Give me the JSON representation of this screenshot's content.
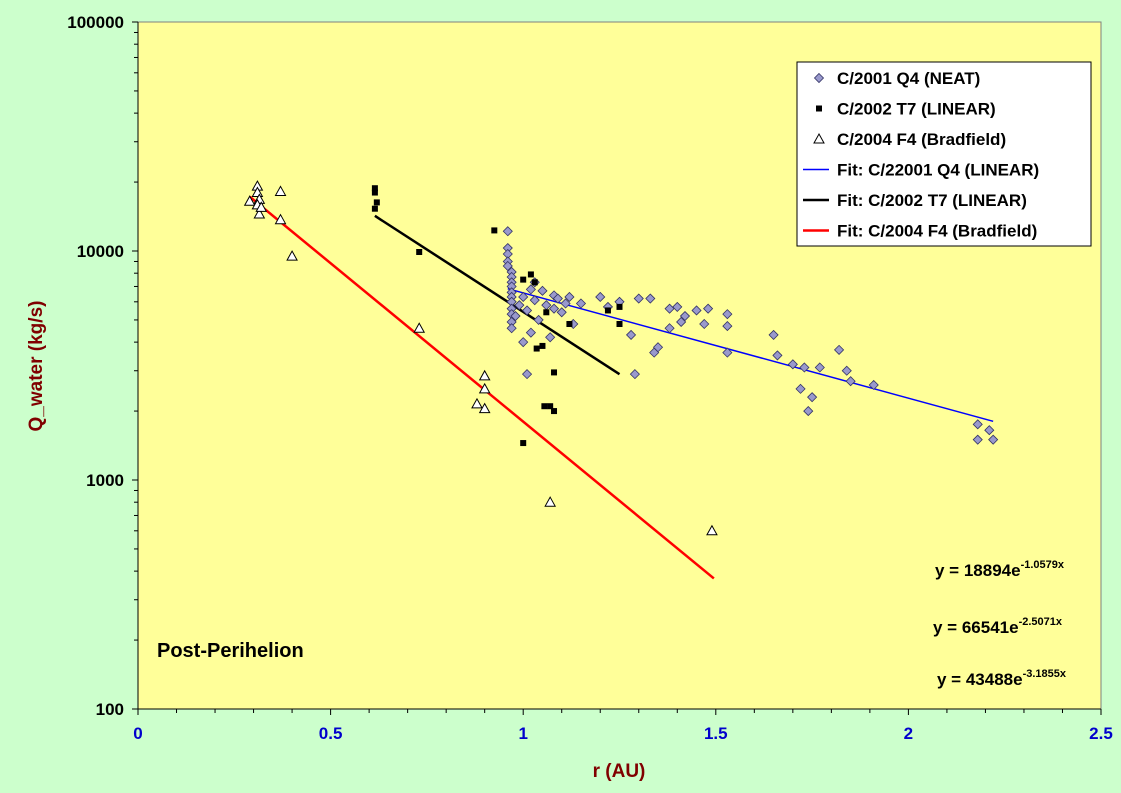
{
  "chart_data": {
    "type": "scatter",
    "title": "",
    "xlabel": "r (AU)",
    "ylabel": "Q_water (kg/s)",
    "xlim": [
      0,
      2.5
    ],
    "ylim": [
      100,
      100000
    ],
    "y_scale": "log",
    "grid": false,
    "legend_position": "top-right",
    "x_ticks": [
      "0",
      "0.5",
      "1",
      "1.5",
      "2",
      "2.5"
    ],
    "y_ticks": [
      "100",
      "1000",
      "10000",
      "100000"
    ],
    "colors": {
      "page_background": "#ccffcc",
      "plot_background": "#ffff99",
      "neat_marker": "#9999cc",
      "linear_marker": "#000000",
      "bradfield_marker": "#ffffff",
      "fit_neat": "#0000ff",
      "fit_linear": "#000000",
      "fit_bradfield": "#ff0000",
      "axis_title": "#800000",
      "x_tick_labels": "#0000cc"
    },
    "series": [
      {
        "name": "C/2001 Q4 (NEAT)",
        "kind": "scatter",
        "marker": "diamond",
        "points": [
          [
            0.96,
            12200
          ],
          [
            0.96,
            10300
          ],
          [
            0.96,
            9700
          ],
          [
            0.96,
            9000
          ],
          [
            0.96,
            8600
          ],
          [
            0.97,
            8100
          ],
          [
            0.97,
            7700
          ],
          [
            0.97,
            7300
          ],
          [
            0.97,
            7000
          ],
          [
            0.97,
            6600
          ],
          [
            0.97,
            6300
          ],
          [
            0.97,
            6000
          ],
          [
            0.97,
            5600
          ],
          [
            0.97,
            5300
          ],
          [
            0.97,
            4900
          ],
          [
            0.97,
            4600
          ],
          [
            0.98,
            5200
          ],
          [
            0.99,
            5800
          ],
          [
            1.0,
            6300
          ],
          [
            1.0,
            4000
          ],
          [
            1.01,
            5500
          ],
          [
            1.01,
            2900
          ],
          [
            1.02,
            6800
          ],
          [
            1.02,
            4400
          ],
          [
            1.03,
            7300
          ],
          [
            1.03,
            6100
          ],
          [
            1.04,
            5000
          ],
          [
            1.05,
            6700
          ],
          [
            1.06,
            5800
          ],
          [
            1.07,
            4200
          ],
          [
            1.08,
            5600
          ],
          [
            1.08,
            6400
          ],
          [
            1.09,
            6200
          ],
          [
            1.1,
            5400
          ],
          [
            1.11,
            5900
          ],
          [
            1.12,
            6300
          ],
          [
            1.13,
            4800
          ],
          [
            1.15,
            5900
          ],
          [
            1.2,
            6300
          ],
          [
            1.22,
            5700
          ],
          [
            1.25,
            6000
          ],
          [
            1.28,
            4300
          ],
          [
            1.29,
            2900
          ],
          [
            1.3,
            6200
          ],
          [
            1.33,
            6200
          ],
          [
            1.34,
            3600
          ],
          [
            1.35,
            3800
          ],
          [
            1.38,
            5600
          ],
          [
            1.38,
            4600
          ],
          [
            1.4,
            5700
          ],
          [
            1.41,
            4900
          ],
          [
            1.42,
            5200
          ],
          [
            1.45,
            5500
          ],
          [
            1.47,
            4800
          ],
          [
            1.48,
            5600
          ],
          [
            1.53,
            5300
          ],
          [
            1.53,
            4700
          ],
          [
            1.53,
            3600
          ],
          [
            1.65,
            4300
          ],
          [
            1.66,
            3500
          ],
          [
            1.7,
            3200
          ],
          [
            1.72,
            2500
          ],
          [
            1.73,
            3100
          ],
          [
            1.74,
            2000
          ],
          [
            1.75,
            2300
          ],
          [
            1.77,
            3100
          ],
          [
            1.82,
            3700
          ],
          [
            1.84,
            3000
          ],
          [
            1.85,
            2700
          ],
          [
            1.91,
            2600
          ],
          [
            2.18,
            1750
          ],
          [
            2.18,
            1500
          ],
          [
            2.21,
            1650
          ],
          [
            2.22,
            1500
          ]
        ]
      },
      {
        "name": "C/2002 T7 (LINEAR)",
        "kind": "scatter",
        "marker": "square",
        "points": [
          [
            0.615,
            18800
          ],
          [
            0.615,
            18000
          ],
          [
            0.62,
            16300
          ],
          [
            0.615,
            15300
          ],
          [
            0.73,
            9900
          ],
          [
            0.925,
            12300
          ],
          [
            1.0,
            7500
          ],
          [
            1.02,
            7900
          ],
          [
            1.03,
            7300
          ],
          [
            1.035,
            3750
          ],
          [
            1.05,
            3850
          ],
          [
            1.06,
            5400
          ],
          [
            1.055,
            2100
          ],
          [
            1.07,
            2100
          ],
          [
            1.08,
            2950
          ],
          [
            1.08,
            2000
          ],
          [
            1.0,
            1450
          ],
          [
            1.12,
            4800
          ],
          [
            1.22,
            5500
          ],
          [
            1.25,
            4800
          ],
          [
            1.25,
            5700
          ]
        ]
      },
      {
        "name": "C/2004 F4 (Bradfield)",
        "kind": "scatter",
        "marker": "triangle",
        "points": [
          [
            0.29,
            16500
          ],
          [
            0.31,
            19200
          ],
          [
            0.31,
            18000
          ],
          [
            0.315,
            16800
          ],
          [
            0.31,
            15900
          ],
          [
            0.315,
            14500
          ],
          [
            0.32,
            15500
          ],
          [
            0.37,
            18200
          ],
          [
            0.37,
            13700
          ],
          [
            0.4,
            9500
          ],
          [
            0.73,
            4600
          ],
          [
            0.88,
            2150
          ],
          [
            0.9,
            2850
          ],
          [
            0.9,
            2500
          ],
          [
            0.9,
            2050
          ],
          [
            1.07,
            800
          ],
          [
            1.49,
            600
          ]
        ]
      },
      {
        "name": "Fit: C/22001 Q4 (LINEAR)",
        "kind": "line",
        "equation": "y = 18894e^(-1.0579x)",
        "a": 18894,
        "b": -1.0579,
        "x_range": [
          0.96,
          2.22
        ]
      },
      {
        "name": "Fit: C/2002 T7 (LINEAR)",
        "kind": "line",
        "equation": "y = 66541e^(-2.5071x)",
        "a": 66541,
        "b": -2.5071,
        "x_range": [
          0.615,
          1.25
        ]
      },
      {
        "name": "Fit: C/2004 F4 (Bradfield)",
        "kind": "line",
        "equation": "y = 43488e^(-3.1855x)",
        "a": 43488,
        "b": -3.1855,
        "x_range": [
          0.29,
          1.495
        ]
      }
    ],
    "equations": [
      {
        "base": "y = 18894e",
        "exponent": "-1.0579x"
      },
      {
        "base": "y = 66541e",
        "exponent": "-2.5071x"
      },
      {
        "base": "y = 43488e",
        "exponent": "-3.1855x"
      }
    ],
    "annotation": "Post-Perihelion"
  }
}
